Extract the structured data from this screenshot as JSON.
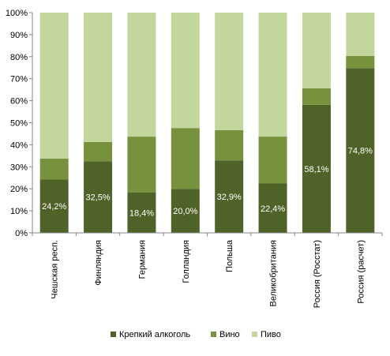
{
  "chart_data": {
    "type": "bar",
    "stacked": true,
    "percent_stacked": true,
    "categories": [
      "Чешская респ.",
      "Финляндия",
      "Германия",
      "Голландия",
      "Польша",
      "Великобритания",
      "Россия (Росстат)",
      "Россия (расчет)"
    ],
    "series": [
      {
        "name": "Крепкий алкоголь",
        "color": "#4f6228",
        "values": [
          24.2,
          32.5,
          18.4,
          20.0,
          32.9,
          22.4,
          58.1,
          74.8
        ],
        "labels": [
          "24,2%",
          "32,5%",
          "18,4%",
          "20,0%",
          "32,9%",
          "22,4%",
          "58,1%",
          "74,8%"
        ]
      },
      {
        "name": "Вино",
        "color": "#76923c",
        "values": [
          9.5,
          8.8,
          25.3,
          27.6,
          13.7,
          21.3,
          7.5,
          5.5
        ]
      },
      {
        "name": "Пиво",
        "color": "#c3d69b",
        "values": [
          66.3,
          58.7,
          56.3,
          52.4,
          53.4,
          56.3,
          34.4,
          19.7
        ]
      }
    ],
    "y_ticks": [
      "0%",
      "10%",
      "20%",
      "30%",
      "40%",
      "50%",
      "60%",
      "70%",
      "80%",
      "90%",
      "100%"
    ],
    "ylim": [
      0,
      100
    ],
    "legend_position": "bottom",
    "grid": false
  }
}
